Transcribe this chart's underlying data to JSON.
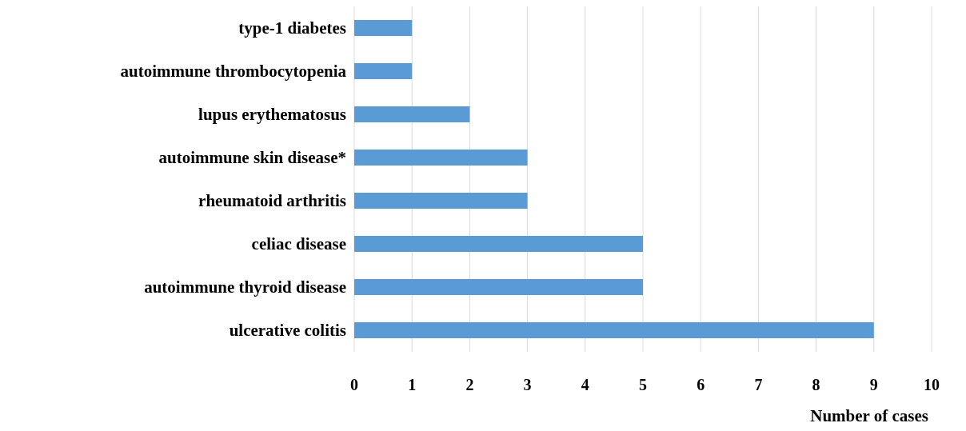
{
  "chart_data": {
    "type": "bar",
    "orientation": "horizontal",
    "xlabel": "Number of cases",
    "categories": [
      "type-1 diabetes",
      "autoimmune thrombocytopenia",
      "lupus erythematosus",
      "autoimmune skin disease*",
      "rheumatoid arthritis",
      "celiac disease",
      "autoimmune thyroid disease",
      "ulcerative colitis"
    ],
    "values": [
      1,
      1,
      2,
      3,
      3,
      5,
      5,
      9
    ],
    "color": "#5b9bd5",
    "xlim": [
      0,
      10
    ],
    "xticks": [
      0,
      1,
      2,
      3,
      4,
      5,
      6,
      7,
      8,
      9,
      10
    ],
    "grid": "x"
  }
}
